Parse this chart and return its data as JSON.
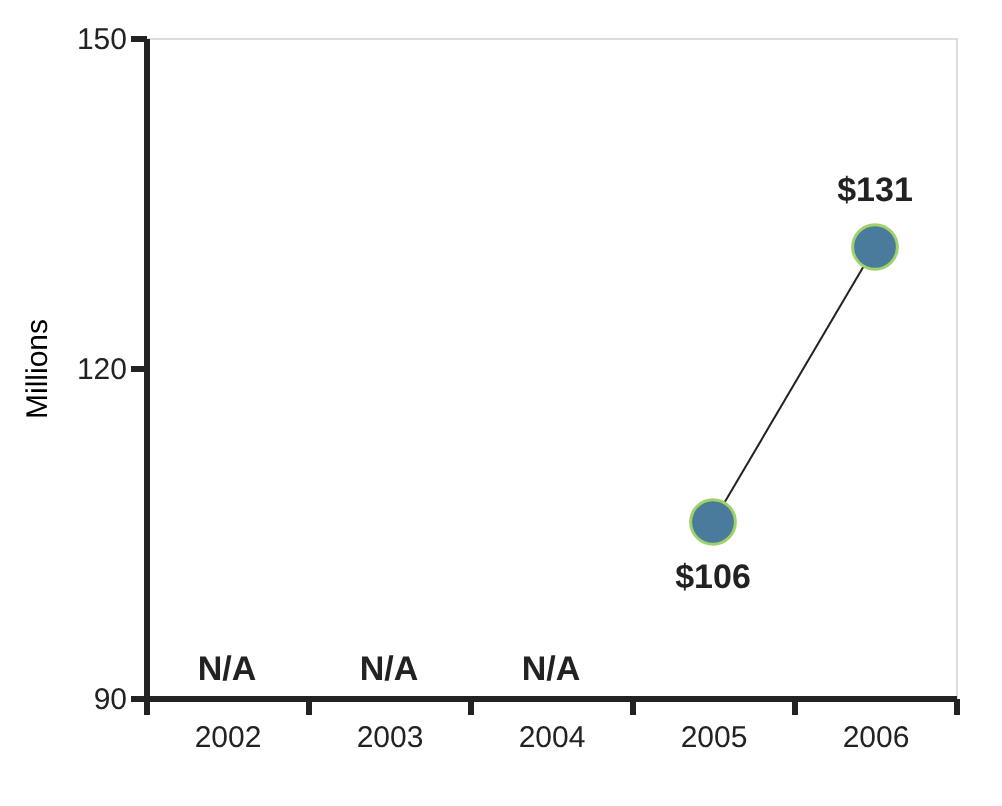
{
  "chart_data": {
    "type": "line",
    "ylabel": "Millions",
    "categories": [
      "2002",
      "2003",
      "2004",
      "2005",
      "2006"
    ],
    "series": [
      {
        "color": "#4a7a9c",
        "values": [
          null,
          null,
          null,
          106,
          131
        ],
        "value_labels": [
          "N/A",
          "N/A",
          "N/A",
          "$106",
          "$131"
        ]
      }
    ],
    "ylim": [
      90,
      150
    ],
    "yticks": [
      90,
      120,
      150
    ],
    "grid": false,
    "marker": "circle",
    "line_style": "solid"
  }
}
